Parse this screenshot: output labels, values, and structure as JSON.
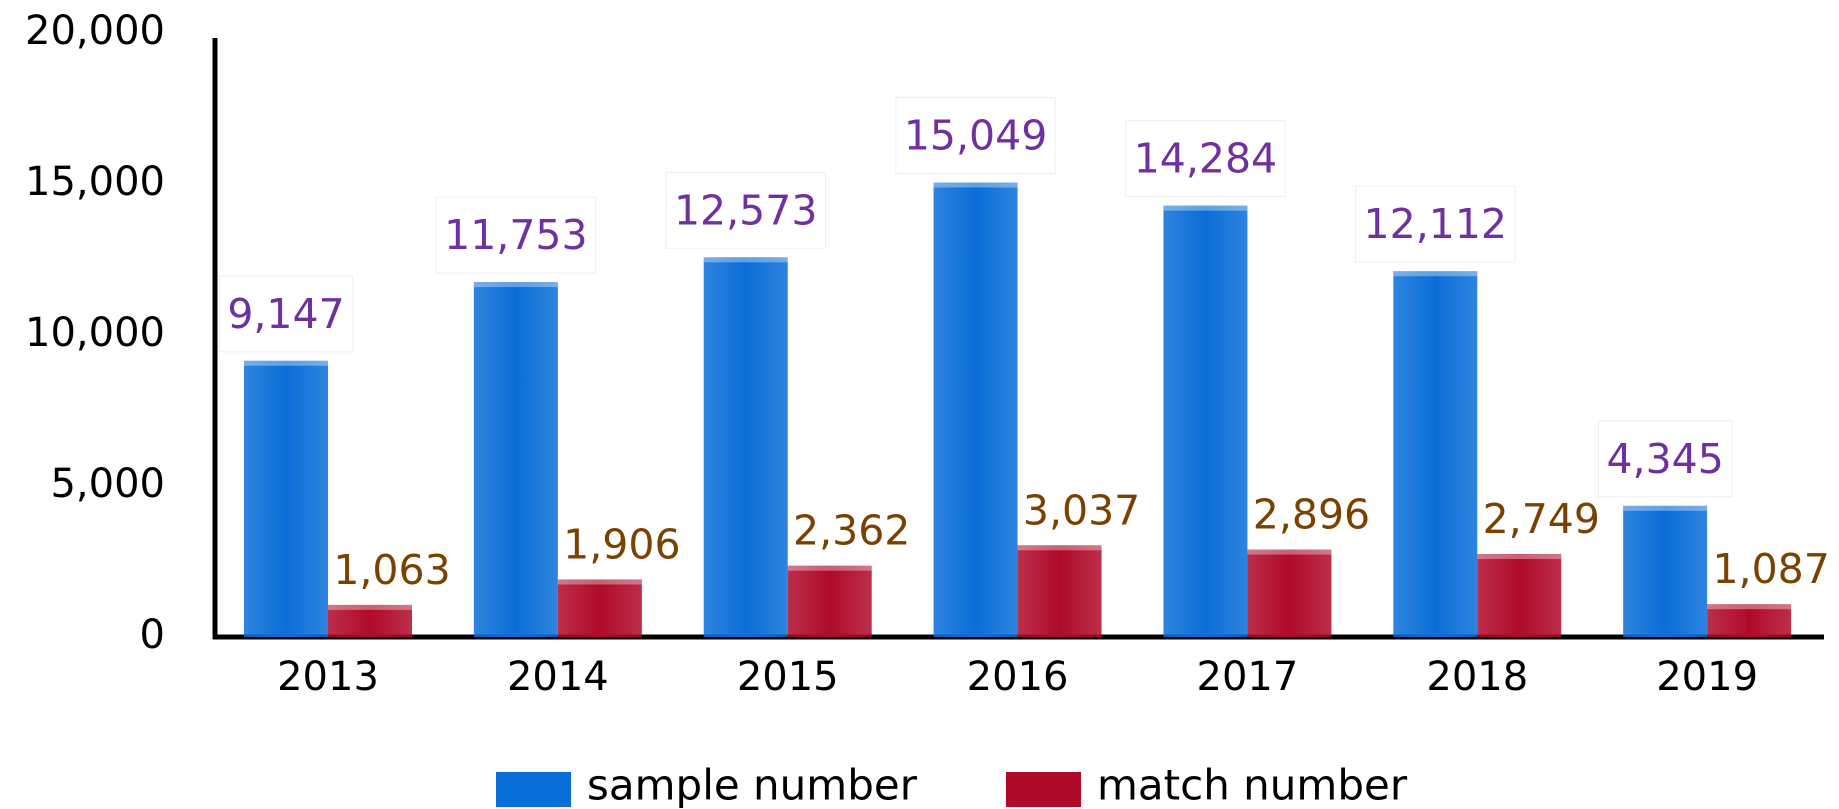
{
  "chart_data": {
    "type": "bar",
    "categories": [
      "2013",
      "2014",
      "2015",
      "2016",
      "2017",
      "2018",
      "2019"
    ],
    "series": [
      {
        "name": "sample number",
        "color": "#0a6ed8",
        "label_color": "#7030a0",
        "values": [
          9147,
          11753,
          12573,
          15049,
          14284,
          12112,
          4345
        ],
        "value_labels": [
          "9,147",
          "11,753",
          "12,573",
          "15,049",
          "14,284",
          "12,112",
          "4,345"
        ]
      },
      {
        "name": "match number",
        "color": "#b00a2a",
        "label_color": "#7a4100",
        "values": [
          1063,
          1906,
          2362,
          3037,
          2896,
          2749,
          1087
        ],
        "value_labels": [
          "1,063",
          "1,906",
          "2,362",
          "3,037",
          "2,896",
          "2,749",
          "1,087"
        ]
      }
    ],
    "ylim": [
      0,
      20000
    ],
    "yticks": [
      0,
      {
        "value": 5000,
        "label": "5,000"
      },
      {
        "value": 10000,
        "label": "10,000"
      },
      {
        "value": 15000,
        "label": "15,000"
      },
      {
        "value": 20000,
        "label": "20,000"
      }
    ],
    "grid": false
  }
}
